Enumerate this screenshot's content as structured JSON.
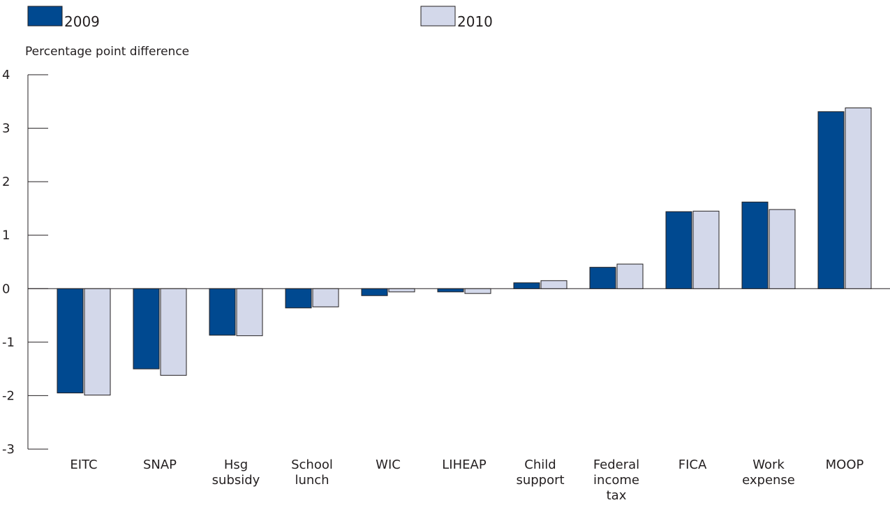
{
  "chart_data": {
    "type": "bar",
    "ylabel": "Percentage point difference",
    "ylim": [
      -3,
      4
    ],
    "yticks": [
      "4",
      "3",
      "2",
      "1",
      "0",
      "-1",
      "-2",
      "-3"
    ],
    "categories": [
      [
        "EITC"
      ],
      [
        "SNAP"
      ],
      [
        "Hsg",
        "subsidy"
      ],
      [
        "School",
        "lunch"
      ],
      [
        "WIC"
      ],
      [
        "LIHEAP"
      ],
      [
        "Child",
        "support"
      ],
      [
        "Federal",
        "income",
        "tax"
      ],
      [
        "FICA"
      ],
      [
        "Work",
        "expense"
      ],
      [
        "MOOP"
      ]
    ],
    "series": [
      {
        "name": "2009",
        "color": "#004990",
        "values": [
          -1.95,
          -1.5,
          -0.87,
          -0.36,
          -0.13,
          -0.06,
          0.11,
          0.4,
          1.44,
          1.62,
          3.31
        ]
      },
      {
        "name": "2010",
        "color": "#d3d8ea",
        "values": [
          -1.99,
          -1.62,
          -0.88,
          -0.34,
          -0.06,
          -0.09,
          0.15,
          0.46,
          1.45,
          1.48,
          3.38
        ]
      }
    ],
    "legend": "top",
    "grid": false
  }
}
